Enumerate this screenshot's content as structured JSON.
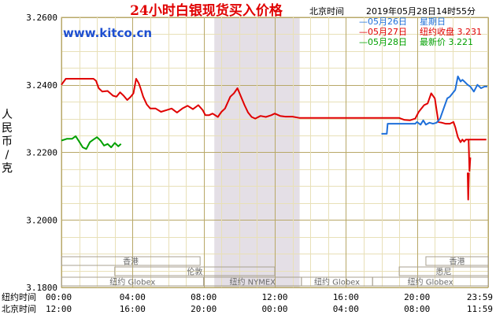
{
  "chart_data": {
    "type": "line",
    "title": "24小时白银现货买入价格",
    "timezone_label": "北京时间",
    "timestamp": "2019年05月28日14时55分",
    "watermark": "www.kitco.cn",
    "ylabel": "人民币/克",
    "ylim": [
      3.18,
      3.26
    ],
    "yticks": [
      "3.2600",
      "3.2400",
      "3.2200",
      "3.2000",
      "3.1800"
    ],
    "xlim": [
      0,
      24
    ],
    "xtick_positions": [
      0,
      4,
      8,
      12,
      16,
      20,
      24
    ],
    "x_rows": [
      {
        "label": "纽约时间",
        "ticks": [
          "00:00",
          "04:00",
          "08:00",
          "12:00",
          "16:00",
          "20:00",
          "23:59"
        ]
      },
      {
        "label": "北京时间",
        "ticks": [
          "12:00",
          "16:00",
          "20:00",
          "00:00",
          "04:00",
          "08:00",
          "11:59"
        ]
      }
    ],
    "legend": [
      {
        "date": "05月26日",
        "text": "星期日",
        "color": "#1e6fd9"
      },
      {
        "date": "05月27日",
        "text": "纽约收盘 3.231",
        "color": "#e00000"
      },
      {
        "date": "05月28日",
        "text": "最新价 3.221",
        "color": "#00a000"
      }
    ],
    "sessions": [
      {
        "label": "香港",
        "start": 0,
        "end": 7.8,
        "row": 1
      },
      {
        "label": "伦敦",
        "start": 3,
        "end": 12,
        "row": 2
      },
      {
        "label": "纽约 Globex",
        "start": 0,
        "end": 8,
        "row": 3
      },
      {
        "label": "纽约 NYMEX",
        "start": 8,
        "end": 13.5,
        "row": 3
      },
      {
        "label": "纽约 Globex",
        "start": 13.5,
        "end": 17.5,
        "row": 3
      },
      {
        "label": "悉尼",
        "start": 19,
        "end": 24,
        "row": 2
      },
      {
        "label": "香港",
        "start": 20.5,
        "end": 24,
        "row": 1
      },
      {
        "label": "纽约 Globex",
        "start": 17.5,
        "end": 24,
        "row": 3
      }
    ],
    "shaded_region": [
      8.6,
      13.4
    ],
    "grid": true,
    "series": [
      {
        "name": "05月27日",
        "color": "#e00000",
        "x": [
          0,
          0.25,
          0.6,
          1.0,
          1.4,
          1.8,
          1.95,
          2.1,
          2.3,
          2.6,
          2.9,
          3.1,
          3.3,
          3.5,
          3.7,
          3.9,
          4.05,
          4.2,
          4.35,
          4.45,
          4.6,
          4.8,
          5.0,
          5.3,
          5.6,
          5.9,
          6.2,
          6.5,
          6.8,
          7.1,
          7.4,
          7.7,
          7.95,
          8.1,
          8.3,
          8.5,
          8.8,
          9.0,
          9.2,
          9.5,
          9.7,
          9.9,
          10.1,
          10.3,
          10.5,
          10.7,
          10.9,
          11.2,
          11.5,
          11.8,
          12.0,
          12.3,
          12.6,
          13.0,
          13.4,
          14.0,
          16.0,
          18.0,
          19.0,
          19.3,
          19.6,
          19.9,
          20.1,
          20.4,
          20.6,
          20.8,
          21.0,
          21.2,
          21.4,
          21.6,
          21.85,
          22.05,
          22.15,
          22.3,
          22.45,
          22.55,
          22.65,
          22.75,
          22.9,
          23.1,
          23.3,
          23.6,
          23.9
        ],
        "y": [
          3.24,
          3.2418,
          3.2418,
          3.2418,
          3.2418,
          3.2418,
          3.2412,
          3.239,
          3.238,
          3.2382,
          3.2368,
          3.2365,
          3.2378,
          3.2368,
          3.2355,
          3.2365,
          3.2375,
          3.2418,
          3.2405,
          3.239,
          3.2365,
          3.2342,
          3.233,
          3.233,
          3.232,
          3.2325,
          3.233,
          3.2318,
          3.233,
          3.2338,
          3.2328,
          3.234,
          3.2325,
          3.231,
          3.231,
          3.2315,
          3.2305,
          3.232,
          3.233,
          3.2365,
          3.2375,
          3.239,
          3.2365,
          3.234,
          3.2318,
          3.2305,
          3.23,
          3.2308,
          3.2305,
          3.231,
          3.2315,
          3.2308,
          3.2306,
          3.2306,
          3.2302,
          3.2302,
          3.2302,
          3.2302,
          3.2302,
          3.2296,
          3.2295,
          3.23,
          3.232,
          3.234,
          3.2345,
          3.2375,
          3.236,
          3.229,
          3.2288,
          3.2285,
          3.2285,
          3.229,
          3.2275,
          3.2245,
          3.223,
          3.2238,
          3.2232,
          3.2238,
          3.2238,
          3.2238,
          3.2238,
          3.2238,
          3.2238
        ]
      },
      {
        "name": "05月27日-spike",
        "color": "#e00000",
        "x": [
          22.9,
          22.95,
          23.0
        ],
        "y": [
          3.2238,
          3.2145,
          3.2185
        ]
      },
      {
        "name": "05月27日-dip",
        "color": "#e00000",
        "x": [
          22.85,
          22.88,
          22.92
        ],
        "y": [
          3.214,
          3.206,
          3.214
        ]
      },
      {
        "name": "05月26日",
        "color": "#1e6fd9",
        "x": [
          18.0,
          18.3,
          18.35,
          18.6,
          19.9,
          20.0,
          20.2,
          20.35,
          20.5,
          20.7,
          20.9,
          21.1,
          21.3,
          21.5,
          21.7,
          21.85,
          22.0,
          22.15,
          22.3,
          22.45,
          22.55,
          22.7,
          22.85,
          23.0,
          23.2,
          23.4,
          23.6,
          23.8,
          23.95
        ],
        "y": [
          3.2255,
          3.2255,
          3.2285,
          3.2285,
          3.2285,
          3.229,
          3.2282,
          3.2295,
          3.2282,
          3.2288,
          3.2285,
          3.2288,
          3.23,
          3.233,
          3.236,
          3.2365,
          3.2375,
          3.2385,
          3.2425,
          3.241,
          3.2415,
          3.2408,
          3.24,
          3.2395,
          3.238,
          3.24,
          3.239,
          3.2395,
          3.2395
        ]
      },
      {
        "name": "05月28日",
        "color": "#00a000",
        "x": [
          0,
          0.3,
          0.6,
          0.8,
          1.0,
          1.2,
          1.4,
          1.6,
          1.8,
          2.0,
          2.2,
          2.4,
          2.6,
          2.8,
          3.0,
          3.2,
          3.35
        ],
        "y": [
          3.2235,
          3.224,
          3.224,
          3.2248,
          3.2232,
          3.2215,
          3.221,
          3.223,
          3.2238,
          3.2245,
          3.2235,
          3.222,
          3.2225,
          3.2215,
          3.2228,
          3.2218,
          3.2225
        ]
      }
    ]
  }
}
